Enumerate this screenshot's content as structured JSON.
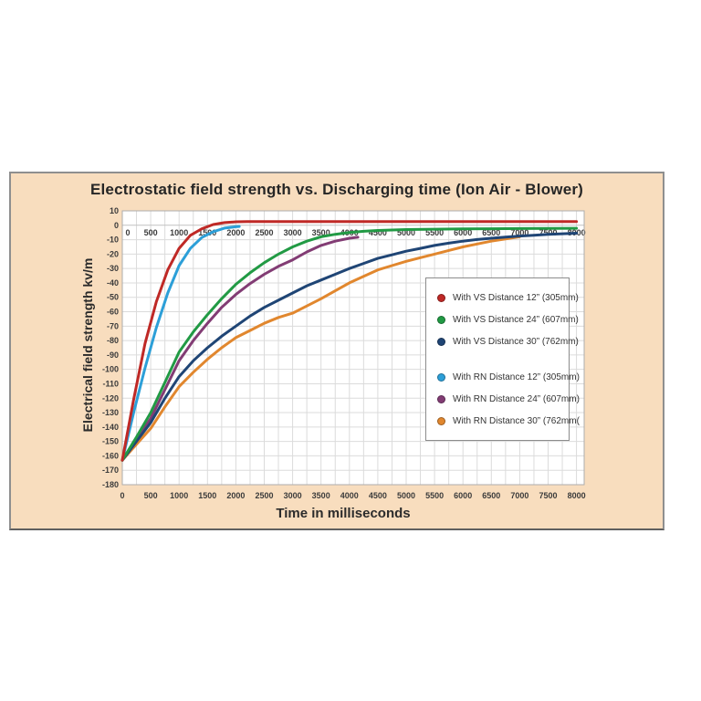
{
  "page": {
    "background": "#ffffff"
  },
  "panel": {
    "background": "#F8DDBE",
    "border_color": "#8F8F8F",
    "title": "Electrostatic field strength vs. Discharging time (Ion Air - Blower)"
  },
  "chart_data": {
    "type": "line",
    "title": "Electrostatic field strength vs. Discharging time (Ion Air - Blower)",
    "xlabel": "Time in milliseconds",
    "ylabel": "Electrical field strength kv/m",
    "xlim": [
      0,
      8000
    ],
    "ylim": [
      -180,
      10
    ],
    "x_major_step": 500,
    "x_minor_step": 250,
    "y_step": 10,
    "x_ticks": [
      0,
      500,
      1000,
      1500,
      2000,
      2500,
      3000,
      3500,
      4000,
      4500,
      5000,
      5500,
      6000,
      6500,
      7000,
      7500,
      8000
    ],
    "x_tick_rows": [
      "inside-at-zero-line",
      "below-plot"
    ],
    "y_ticks": [
      10,
      0,
      -10,
      -20,
      -30,
      -40,
      -50,
      -60,
      -70,
      -80,
      -90,
      -100,
      -110,
      -120,
      -130,
      -140,
      -150,
      -160,
      -170,
      -180
    ],
    "grid": true,
    "gridline_color": "#DBDBDB",
    "zero_line_color": "#C2C2C2",
    "plot_background": "#FFFFFF",
    "plot_border_color": "#ADADAD",
    "tick_label_color": "#3B3B3B",
    "legend_position": "middle-right",
    "legend_gap_after_index": 2,
    "series": [
      {
        "name": "With VS Distance 12” (305mm)",
        "color": "#BF2926",
        "points": [
          [
            0,
            -163
          ],
          [
            200,
            -121
          ],
          [
            400,
            -82
          ],
          [
            600,
            -53
          ],
          [
            800,
            -31
          ],
          [
            1000,
            -16
          ],
          [
            1200,
            -7
          ],
          [
            1400,
            -2.5
          ],
          [
            1600,
            0.5
          ],
          [
            1800,
            1.8
          ],
          [
            2000,
            2.4
          ],
          [
            2200,
            2.5
          ],
          [
            2500,
            2.5
          ],
          [
            3000,
            2.5
          ],
          [
            3500,
            2.5
          ],
          [
            4000,
            2.5
          ],
          [
            4500,
            2.5
          ],
          [
            5000,
            2.5
          ],
          [
            5500,
            2.5
          ],
          [
            6000,
            2.5
          ],
          [
            6500,
            2.5
          ],
          [
            7000,
            2.5
          ],
          [
            7500,
            2.5
          ],
          [
            8000,
            2.5
          ]
        ]
      },
      {
        "name": "With VS Distance 24” (607mm)",
        "color": "#219A44",
        "points": [
          [
            0,
            -163
          ],
          [
            250,
            -147
          ],
          [
            500,
            -130
          ],
          [
            750,
            -109
          ],
          [
            1000,
            -88
          ],
          [
            1250,
            -74
          ],
          [
            1500,
            -62
          ],
          [
            1750,
            -51
          ],
          [
            2000,
            -41
          ],
          [
            2250,
            -33
          ],
          [
            2500,
            -26
          ],
          [
            2750,
            -20
          ],
          [
            3000,
            -15
          ],
          [
            3250,
            -11
          ],
          [
            3500,
            -8
          ],
          [
            3750,
            -6.3
          ],
          [
            4000,
            -5
          ],
          [
            4250,
            -4.2
          ],
          [
            4500,
            -3.6
          ],
          [
            5000,
            -3
          ],
          [
            5500,
            -2.7
          ],
          [
            6000,
            -2.5
          ],
          [
            6500,
            -2.4
          ],
          [
            7000,
            -2.3
          ],
          [
            7500,
            -2.2
          ],
          [
            8000,
            -2.1
          ]
        ]
      },
      {
        "name": "With VS Distance 30” (762mm)",
        "color": "#1F4575",
        "points": [
          [
            0,
            -163
          ],
          [
            250,
            -150
          ],
          [
            500,
            -137
          ],
          [
            750,
            -120
          ],
          [
            1000,
            -105
          ],
          [
            1250,
            -94
          ],
          [
            1500,
            -85
          ],
          [
            1750,
            -77
          ],
          [
            2000,
            -70
          ],
          [
            2250,
            -63
          ],
          [
            2500,
            -57
          ],
          [
            2750,
            -52
          ],
          [
            3000,
            -47
          ],
          [
            3250,
            -42
          ],
          [
            3500,
            -38
          ],
          [
            3750,
            -34
          ],
          [
            4000,
            -30
          ],
          [
            4250,
            -26.5
          ],
          [
            4500,
            -23
          ],
          [
            4750,
            -20.5
          ],
          [
            5000,
            -18
          ],
          [
            5250,
            -16
          ],
          [
            5500,
            -14
          ],
          [
            5750,
            -12.4
          ],
          [
            6000,
            -11
          ],
          [
            6250,
            -9.9
          ],
          [
            6500,
            -9
          ],
          [
            6750,
            -8.2
          ],
          [
            7000,
            -7.5
          ],
          [
            7250,
            -6.9
          ],
          [
            7500,
            -6.3
          ],
          [
            7750,
            -5.9
          ],
          [
            8000,
            -5.5
          ]
        ]
      },
      {
        "name": "With RN Distance 12” (305mm)",
        "color": "#2C9FD8",
        "points": [
          [
            0,
            -163
          ],
          [
            200,
            -130
          ],
          [
            400,
            -99
          ],
          [
            600,
            -71
          ],
          [
            800,
            -47
          ],
          [
            1000,
            -28
          ],
          [
            1200,
            -16
          ],
          [
            1400,
            -8.5
          ],
          [
            1600,
            -4.5
          ],
          [
            1800,
            -2
          ],
          [
            2000,
            -1
          ],
          [
            2060,
            -0.8
          ]
        ]
      },
      {
        "name": "With RN Distance 24” (607mm)",
        "color": "#823C74",
        "points": [
          [
            0,
            -163
          ],
          [
            250,
            -149
          ],
          [
            500,
            -134
          ],
          [
            750,
            -114
          ],
          [
            1000,
            -94
          ],
          [
            1250,
            -80
          ],
          [
            1500,
            -68
          ],
          [
            1750,
            -57
          ],
          [
            2000,
            -48
          ],
          [
            2250,
            -40.5
          ],
          [
            2500,
            -34
          ],
          [
            2750,
            -28.5
          ],
          [
            3000,
            -24
          ],
          [
            3250,
            -18.5
          ],
          [
            3500,
            -14
          ],
          [
            3750,
            -11
          ],
          [
            4000,
            -9
          ],
          [
            4150,
            -8.3
          ]
        ]
      },
      {
        "name": "With RN Distance 30” (762mm(",
        "color": "#E1872E",
        "points": [
          [
            0,
            -163
          ],
          [
            250,
            -152
          ],
          [
            500,
            -141
          ],
          [
            750,
            -126
          ],
          [
            1000,
            -112
          ],
          [
            1250,
            -102
          ],
          [
            1500,
            -93
          ],
          [
            1750,
            -85
          ],
          [
            2000,
            -78
          ],
          [
            2250,
            -73
          ],
          [
            2500,
            -68
          ],
          [
            2750,
            -64
          ],
          [
            3000,
            -61
          ],
          [
            3250,
            -56
          ],
          [
            3500,
            -51
          ],
          [
            3750,
            -45.5
          ],
          [
            4000,
            -40
          ],
          [
            4250,
            -35.5
          ],
          [
            4500,
            -31
          ],
          [
            4750,
            -28
          ],
          [
            5000,
            -25
          ],
          [
            5250,
            -22.5
          ],
          [
            5500,
            -20
          ],
          [
            5750,
            -17.5
          ],
          [
            6000,
            -15
          ],
          [
            6250,
            -13
          ],
          [
            6500,
            -11
          ],
          [
            6750,
            -9.5
          ],
          [
            7000,
            -8
          ]
        ]
      }
    ]
  },
  "legend": {
    "background": "#FFFFFF",
    "border_color": "#8C8C8C"
  }
}
